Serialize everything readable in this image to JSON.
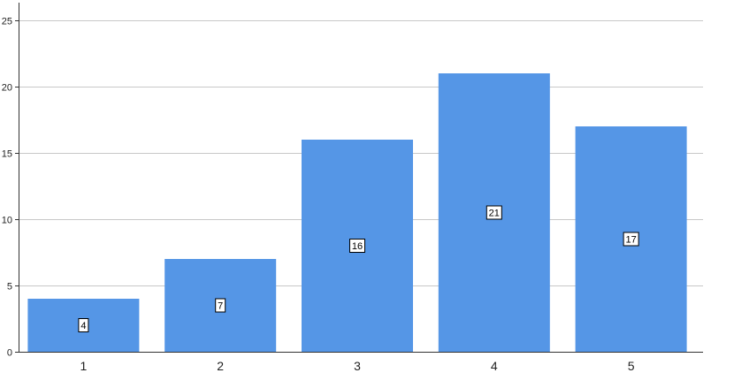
{
  "chart_data": {
    "type": "bar",
    "categories": [
      "1",
      "2",
      "3",
      "4",
      "5"
    ],
    "values": [
      4,
      7,
      16,
      21,
      17
    ],
    "data_labels": [
      "4",
      "7",
      "16",
      "21",
      "17"
    ],
    "ylim": [
      0,
      25
    ],
    "yticks": [
      0,
      5,
      10,
      15,
      20,
      25
    ],
    "ytick_labels": [
      "0",
      "5",
      "10",
      "15",
      "20",
      "25"
    ],
    "grid": true,
    "legend": "none",
    "colors": {
      "bar": "#5596e6",
      "grid": "#c8c8c8",
      "axis": "#333333",
      "text": "#222222"
    }
  }
}
